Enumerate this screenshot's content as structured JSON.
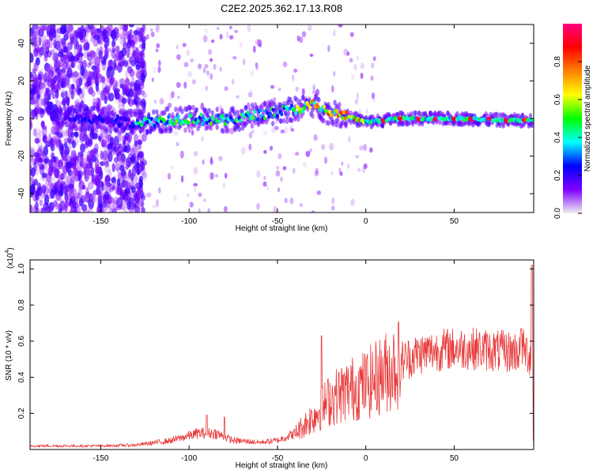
{
  "figure": {
    "title": "C2E2.2025.362.17.13.R08"
  },
  "chart_data": [
    {
      "type": "heatmap",
      "xlabel": "Height of straight line (km)",
      "ylabel": "Frequency (Hz)",
      "xlim": [
        -190,
        95
      ],
      "ylim": [
        -50,
        50
      ],
      "xticks": [
        -150,
        -100,
        -50,
        0,
        50
      ],
      "yticks": [
        -40,
        -20,
        0,
        20,
        40
      ],
      "grid": false,
      "colorbar": {
        "label": "Normalized spectral amplitude",
        "range": [
          0,
          1
        ],
        "ticks": [
          0.0,
          0.2,
          0.4,
          0.6,
          0.8
        ],
        "colormap": [
          "#f0f0f0",
          "#8000ff",
          "#0000ff",
          "#00ffff",
          "#00ff00",
          "#ffff00",
          "#ff8000",
          "#ff0000",
          "#ff0080"
        ]
      },
      "ridge": {
        "description_points": [
          {
            "x": -160,
            "y": 0
          },
          {
            "x": -130,
            "y": -2
          },
          {
            "x": -100,
            "y": 0
          },
          {
            "x": -80,
            "y": -1
          },
          {
            "x": -60,
            "y": 2
          },
          {
            "x": -40,
            "y": 5
          },
          {
            "x": -30,
            "y": 7
          },
          {
            "x": -20,
            "y": 3
          },
          {
            "x": -10,
            "y": 1
          },
          {
            "x": 0,
            "y": -2
          },
          {
            "x": 20,
            "y": 0
          },
          {
            "x": 50,
            "y": 0
          },
          {
            "x": 80,
            "y": -1
          },
          {
            "x": 95,
            "y": -1
          }
        ]
      }
    },
    {
      "type": "line",
      "xlabel": "Height of straight line (km)",
      "ylabel": "SNR (10 * v/v)",
      "y_multiplier_label": "(x10",
      "y_multiplier_exp": "4",
      "y_multiplier_close": ")",
      "xlim": [
        -190,
        95
      ],
      "ylim": [
        0,
        1.05
      ],
      "xticks": [
        -150,
        -100,
        -50,
        0,
        50
      ],
      "yticks": [
        0.2,
        0.4,
        0.6,
        0.8,
        1.0
      ],
      "grid": false,
      "series_color": "#e83a3a",
      "envelope": [
        {
          "x": -190,
          "y": 0.02
        },
        {
          "x": -150,
          "y": 0.02
        },
        {
          "x": -130,
          "y": 0.025
        },
        {
          "x": -110,
          "y": 0.05
        },
        {
          "x": -95,
          "y": 0.09
        },
        {
          "x": -85,
          "y": 0.09
        },
        {
          "x": -75,
          "y": 0.05
        },
        {
          "x": -60,
          "y": 0.04
        },
        {
          "x": -50,
          "y": 0.05
        },
        {
          "x": -40,
          "y": 0.09
        },
        {
          "x": -30,
          "y": 0.18
        },
        {
          "x": -20,
          "y": 0.28
        },
        {
          "x": -10,
          "y": 0.33
        },
        {
          "x": 0,
          "y": 0.36
        },
        {
          "x": 10,
          "y": 0.42
        },
        {
          "x": 20,
          "y": 0.49
        },
        {
          "x": 30,
          "y": 0.53
        },
        {
          "x": 40,
          "y": 0.55
        },
        {
          "x": 50,
          "y": 0.56
        },
        {
          "x": 60,
          "y": 0.56
        },
        {
          "x": 70,
          "y": 0.55
        },
        {
          "x": 80,
          "y": 0.54
        },
        {
          "x": 90,
          "y": 0.55
        },
        {
          "x": 95,
          "y": 0.5
        }
      ],
      "spikes": [
        {
          "x": -25,
          "y": 0.63
        },
        {
          "x": -90,
          "y": 0.19
        },
        {
          "x": -80,
          "y": 0.18
        },
        {
          "x": 94,
          "y": 1.02
        },
        {
          "x": 95,
          "y": 0.05
        },
        {
          "x": 88,
          "y": 0.67
        }
      ]
    }
  ]
}
